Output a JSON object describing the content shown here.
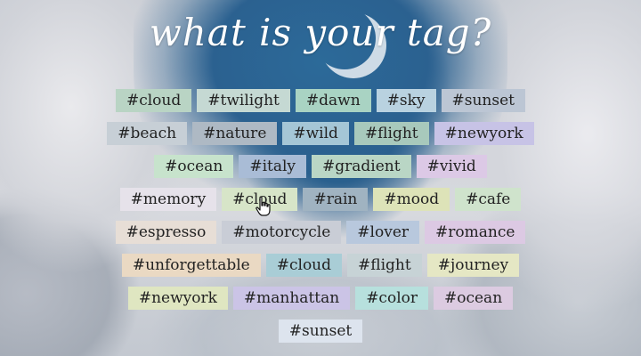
{
  "title": "what is your tag?",
  "rows": [
    [
      {
        "label": "#cloud",
        "color": "#b9d4c4"
      },
      {
        "label": "#twilight",
        "color": "#c5d9d3"
      },
      {
        "label": "#dawn",
        "color": "#a9d3c3"
      },
      {
        "label": "#sky",
        "color": "#b9d2e0"
      },
      {
        "label": "#sunset",
        "color": "#bcc6d4"
      }
    ],
    [
      {
        "label": "#beach",
        "color": "#c7cfd6"
      },
      {
        "label": "#nature",
        "color": "#aeb9c4"
      },
      {
        "label": "#wild",
        "color": "#a5c6d6"
      },
      {
        "label": "#flight",
        "color": "#a8c9bc"
      },
      {
        "label": "#newyork",
        "color": "#c7c3e6"
      }
    ],
    [
      {
        "label": "#ocean",
        "color": "#c7e3cc"
      },
      {
        "label": "#italy",
        "color": "#a9bcd6"
      },
      {
        "label": "#gradient",
        "color": "#b9d6c5"
      },
      {
        "label": "#vivid",
        "color": "#dcc9e6"
      }
    ],
    [
      {
        "label": "#memory",
        "color": "#e6e2ea"
      },
      {
        "label": "#cloud",
        "color": "#d7e5c8"
      },
      {
        "label": "#rain",
        "color": "#a0b3c1"
      },
      {
        "label": "#mood",
        "color": "#dde3b8"
      },
      {
        "label": "#cafe",
        "color": "#cfe3cc"
      }
    ],
    [
      {
        "label": "#espresso",
        "color": "#e7ded6"
      },
      {
        "label": "#motorcycle",
        "color": "#c9cdd6"
      },
      {
        "label": "#lover",
        "color": "#b8c8dd"
      },
      {
        "label": "#romance",
        "color": "#dcc9e3"
      }
    ],
    [
      {
        "label": "#unforgettable",
        "color": "#ead9c3"
      },
      {
        "label": "#cloud",
        "color": "#a9cdd6"
      },
      {
        "label": "#flight",
        "color": "#c7d3d6"
      },
      {
        "label": "#journey",
        "color": "#e5e7c4"
      }
    ],
    [
      {
        "label": "#newyork",
        "color": "#dfe6c1"
      },
      {
        "label": "#manhattan",
        "color": "#cbc4e6"
      },
      {
        "label": "#color",
        "color": "#b7e0dd"
      },
      {
        "label": "#ocean",
        "color": "#dccbe1"
      }
    ],
    [
      {
        "label": "#sunset",
        "color": "#dde4ee"
      }
    ]
  ],
  "cursor": {
    "icon": "hand-pointer-icon"
  }
}
